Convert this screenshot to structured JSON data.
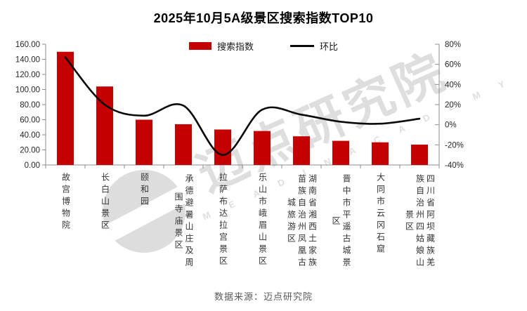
{
  "title": "2025年10月5A级景区搜索指数TOP10",
  "legend": {
    "bar_label": "搜索指数",
    "line_label": "环比"
  },
  "watermark": {
    "text": "迈点研究院",
    "subtext": "M E A D I N  A C A D E M Y"
  },
  "source": "数据来源：迈点研究院",
  "colors": {
    "bar": "#c40000",
    "line": "#0a0a0a",
    "axis": "#8c8c8c",
    "tick_text": "#262626"
  },
  "chart_data": {
    "type": "bar",
    "subtype": "combo-bar-line-dual-axis",
    "title": "2025年10月5A级景区搜索指数TOP10",
    "categories": [
      "故宫博物院",
      "长白山景区",
      "颐和园",
      "承德避暑山庄及周围寺庙景区",
      "拉萨布达拉宫景区",
      "乐山市峨眉山景区",
      "湖南省湘西土家族苗族自治州凤凰古城旅游区",
      "晋中市平遥古城景区",
      "大同市云冈石窟",
      "四川省阿坝藏族羌族自治州四姑娘山景区"
    ],
    "series": [
      {
        "name": "搜索指数",
        "type": "bar",
        "axis": "left",
        "values": [
          150,
          104,
          60,
          54,
          47,
          45,
          38,
          32,
          30,
          27
        ]
      },
      {
        "name": "环比",
        "type": "line",
        "axis": "right",
        "unit": "%",
        "values": [
          67,
          20,
          9,
          19,
          -30,
          15,
          10,
          3,
          1,
          6
        ]
      }
    ],
    "left_axis": {
      "min": 0,
      "max": 160,
      "step": 20,
      "tick_labels": [
        "160.00",
        "140.00",
        "120.00",
        "100.00",
        "80.00",
        "60.00",
        "40.00",
        "20.00",
        "0.00"
      ]
    },
    "right_axis": {
      "min": -40,
      "max": 80,
      "step": 20,
      "tick_labels": [
        "80%",
        "60%",
        "40%",
        "20%",
        "0%",
        "-20%",
        "-40%"
      ]
    },
    "grid": false,
    "legend_position": "top-center"
  }
}
